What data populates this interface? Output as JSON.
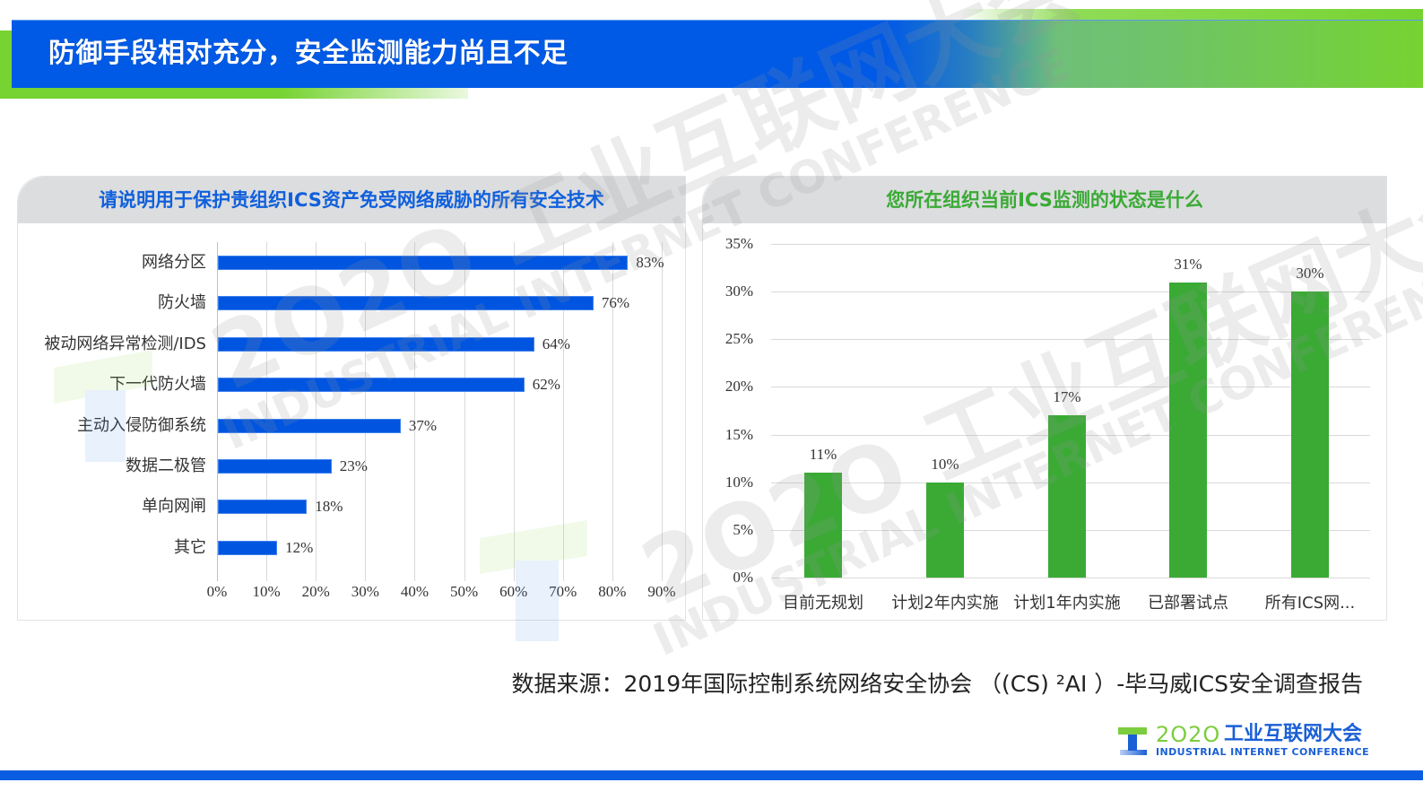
{
  "header": {
    "title": "防御手段相对充分，安全监测能力尚且不足"
  },
  "colors": {
    "brand_blue": "#005ae6",
    "brand_green": "#76d331",
    "left_bar": "#0055e0",
    "right_bar": "#3aaa35",
    "left_title": "#1060dc",
    "right_title": "#3aaa35",
    "card_header_bg": "#dcdddf"
  },
  "watermark": {
    "cn": "2O2O 工业互联网大会",
    "en": "INDUSTRIAL INTERNET CONFERENCE"
  },
  "left_card": {
    "title": "请说明用于保护贵组织ICS资产免受网络威胁的所有安全技术"
  },
  "right_card": {
    "title": "您所在组织当前ICS监测的状态是什么"
  },
  "chart_data": [
    {
      "type": "bar",
      "orientation": "horizontal",
      "title": "请说明用于保护贵组织ICS资产免受网络威胁的所有安全技术",
      "categories": [
        "网络分区",
        "防火墙",
        "被动网络异常检测/IDS",
        "下一代防火墙",
        "主动入侵防御系统",
        "数据二极管",
        "单向网闸",
        "其它"
      ],
      "values": [
        83,
        76,
        64,
        62,
        37,
        23,
        18,
        12
      ],
      "value_labels": [
        "83%",
        "76%",
        "64%",
        "62%",
        "37%",
        "23%",
        "18%",
        "12%"
      ],
      "xlabel": "",
      "ylabel": "",
      "xlim": [
        0,
        90
      ],
      "x_ticks": [
        "0%",
        "10%",
        "20%",
        "30%",
        "40%",
        "50%",
        "60%",
        "70%",
        "80%",
        "90%"
      ],
      "grid": "vertical",
      "legend": "none",
      "color": "#0055e0"
    },
    {
      "type": "bar",
      "orientation": "vertical",
      "title": "您所在组织当前ICS监测的状态是什么",
      "categories": [
        "目前无规划",
        "计划2年内实施",
        "计划1年内实施",
        "已部署试点",
        "所有ICS网..."
      ],
      "values": [
        11,
        10,
        17,
        31,
        30
      ],
      "value_labels": [
        "11%",
        "10%",
        "17%",
        "31%",
        "30%"
      ],
      "xlabel": "",
      "ylabel": "",
      "ylim": [
        0,
        35
      ],
      "y_ticks": [
        "0%",
        "5%",
        "10%",
        "15%",
        "20%",
        "25%",
        "30%",
        "35%"
      ],
      "grid": "horizontal",
      "legend": "none",
      "color": "#3aaa35"
    }
  ],
  "footer": {
    "source": "数据来源：2019年国际控制系统网络安全协会 （(CS) ²AI ）-毕马威ICS安全调查报告",
    "logo_year": "2O2O",
    "logo_cn": "工业互联网大会",
    "logo_en": "INDUSTRIAL INTERNET CONFERENCE"
  }
}
